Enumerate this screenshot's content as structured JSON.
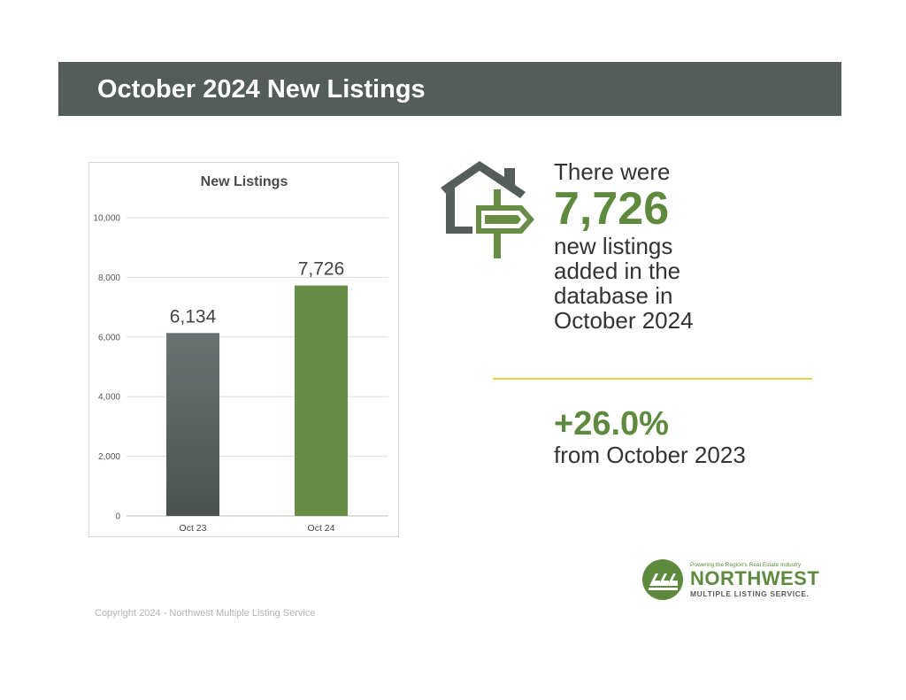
{
  "header": {
    "title": "October 2024 New Listings"
  },
  "chart_data": {
    "type": "bar",
    "title": "New Listings",
    "categories": [
      "Oct 23",
      "Oct 24"
    ],
    "values": [
      6134,
      7726
    ],
    "value_labels": [
      "6,134",
      "7,726"
    ],
    "ylim": [
      0,
      10000
    ],
    "yticks": [
      0,
      2000,
      4000,
      6000,
      8000,
      10000
    ],
    "ytick_labels": [
      "0",
      "2,000",
      "4,000",
      "6,000",
      "8,000",
      "10,000"
    ],
    "xlabel": "",
    "ylabel": "",
    "grid": true,
    "bar_colors": [
      "#5a6160",
      "#678c45"
    ]
  },
  "stat": {
    "line1": "There were",
    "value": "7,726",
    "line2": "new listings",
    "line3": "added in the",
    "line4": "database in",
    "line5": "October 2024"
  },
  "change": {
    "value": "+26.0%",
    "text": "from October 2023"
  },
  "footer": {
    "copyright": "Copyright 2024 - Northwest Multiple Listing Service"
  },
  "logo": {
    "tagline": "Powering the Region's Real Estate Industry",
    "name": "NORTHWEST",
    "sub": "MULTIPLE LISTING SERVICE."
  },
  "icons": {
    "house": "house-signpost-icon",
    "logo": "nwmls-logo-icon"
  },
  "colors": {
    "header_bg": "#555d5a",
    "accent_green": "#5e8a3e",
    "divider": "#f2cd4d"
  }
}
